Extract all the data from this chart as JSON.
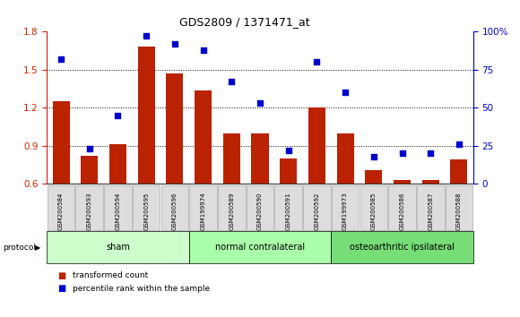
{
  "title": "GDS2809 / 1371471_at",
  "samples": [
    "GSM200584",
    "GSM200593",
    "GSM200594",
    "GSM200595",
    "GSM200596",
    "GSM199974",
    "GSM200589",
    "GSM200590",
    "GSM200591",
    "GSM200592",
    "GSM199973",
    "GSM200585",
    "GSM200586",
    "GSM200587",
    "GSM200588"
  ],
  "bar_values": [
    1.25,
    0.82,
    0.91,
    1.68,
    1.47,
    1.34,
    1.0,
    1.0,
    0.8,
    1.2,
    1.0,
    0.71,
    0.63,
    0.63,
    0.79
  ],
  "scatter_values": [
    82,
    23,
    45,
    97,
    92,
    88,
    67,
    53,
    22,
    80,
    60,
    18,
    20,
    20,
    26
  ],
  "ylim_left": [
    0.6,
    1.8
  ],
  "ylim_right": [
    0,
    100
  ],
  "yticks_left": [
    0.6,
    0.9,
    1.2,
    1.5,
    1.8
  ],
  "yticks_right": [
    0,
    25,
    50,
    75,
    100
  ],
  "bar_color": "#bb2200",
  "scatter_color": "#0000cc",
  "group_sham_color": "#ccffcc",
  "group_normal_color": "#aaffaa",
  "group_osteo_color": "#77dd77",
  "groups": [
    {
      "label": "sham",
      "start": 0,
      "end": 5
    },
    {
      "label": "normal contralateral",
      "start": 5,
      "end": 10
    },
    {
      "label": "osteoarthritic ipsilateral",
      "start": 10,
      "end": 15
    }
  ],
  "protocol_label": "protocol",
  "legend_bar": "transformed count",
  "legend_scatter": "percentile rank within the sample",
  "tick_label_color": "#cc2200",
  "right_tick_color": "#0000cc",
  "background_color": "#ffffff",
  "sample_box_color": "#dddddd",
  "grid_dotted_color": "#000000"
}
